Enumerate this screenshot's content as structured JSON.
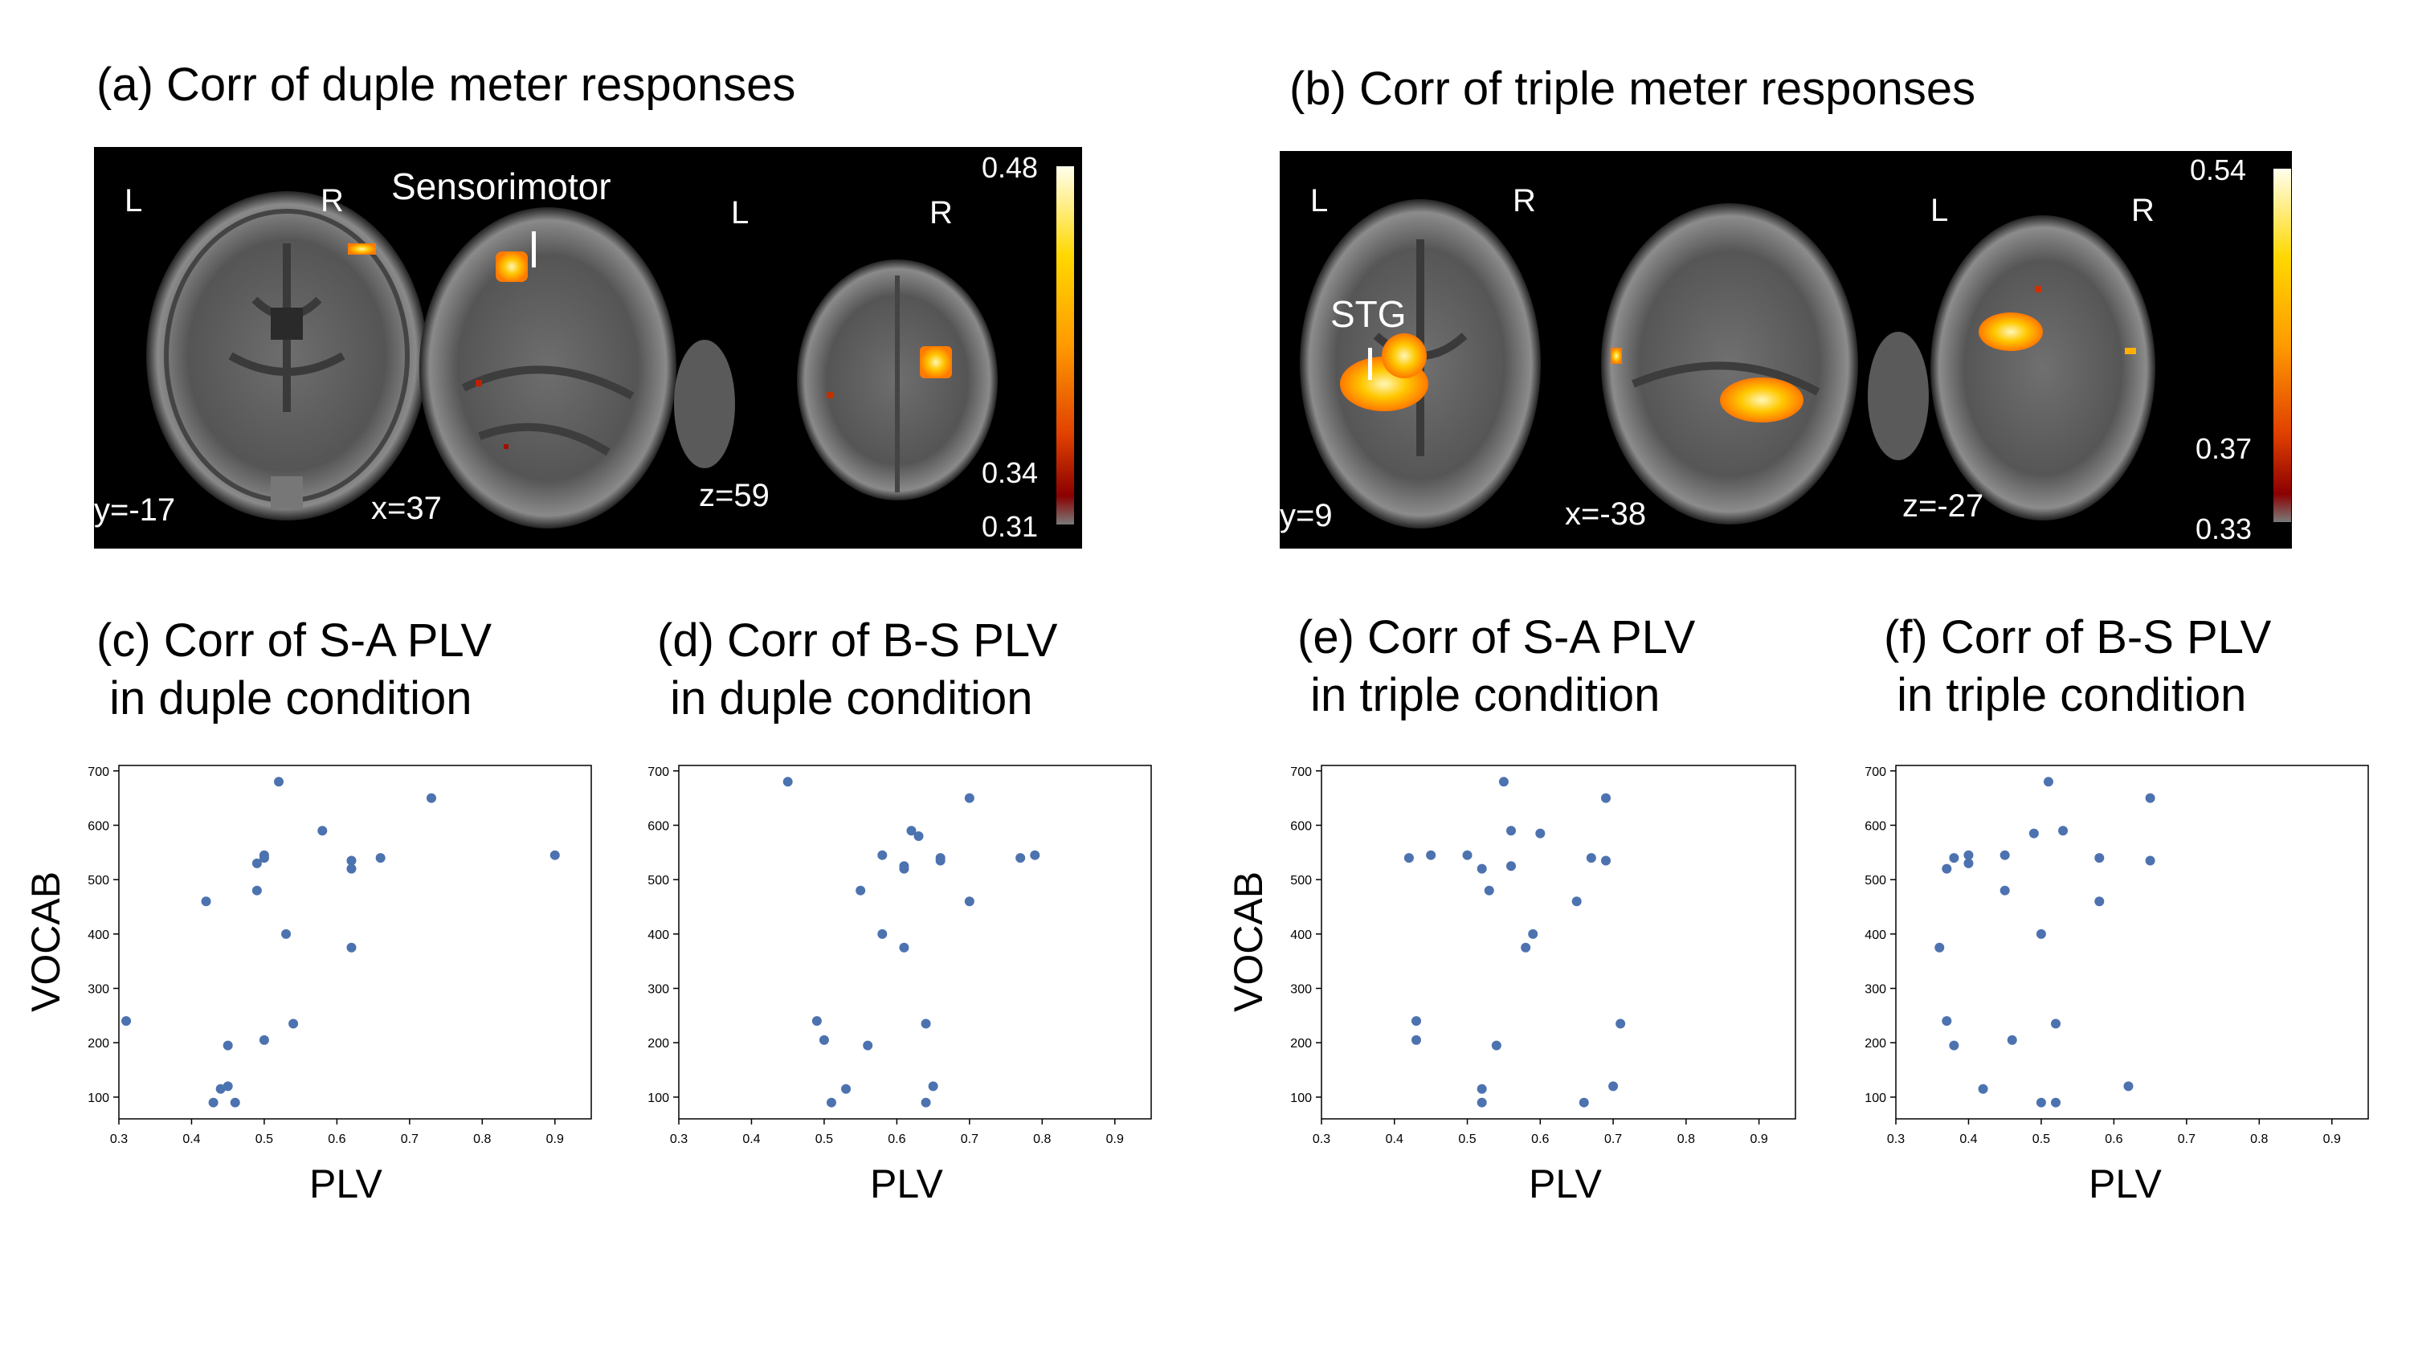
{
  "panels": {
    "a": {
      "title": "(a) Corr of duple meter responses",
      "label_L1": "L",
      "label_R1": "R",
      "label_L3": "L",
      "label_R3": "R",
      "annotation": "Sensorimotor",
      "slice1": "y=-17",
      "slice2": "x=37",
      "slice3": "z=59",
      "cbar_max": "0.48",
      "cbar_mid": "0.34",
      "cbar_min": "0.31"
    },
    "b": {
      "title": "(b) Corr of triple meter responses",
      "label_L1": "L",
      "label_R1": "R",
      "label_L3": "L",
      "label_R3": "R",
      "annotation": "STG",
      "slice1": "y=9",
      "slice2": "x=-38",
      "slice3": "z=-27",
      "cbar_max": "0.54",
      "cbar_mid": "0.37",
      "cbar_min": "0.33"
    }
  },
  "colors": {
    "point": "#4c72b0",
    "hot_low": "#8b1a00",
    "hot_mid": "#ff6a00",
    "hot_high": "#ffffe0"
  },
  "chart_data": [
    {
      "type": "scatter",
      "title": "(c) Corr of S-A PLV\n in duple condition",
      "xlabel": "PLV",
      "ylabel": "VOCAB",
      "xlim": [
        0.3,
        0.95
      ],
      "ylim": [
        60,
        710
      ],
      "xticks": [
        "0.3",
        "0.4",
        "0.5",
        "0.6",
        "0.7",
        "0.8",
        "0.9"
      ],
      "yticks": [
        "100",
        "200",
        "300",
        "400",
        "500",
        "600",
        "700"
      ],
      "x": [
        0.31,
        0.42,
        0.43,
        0.44,
        0.45,
        0.45,
        0.46,
        0.49,
        0.49,
        0.5,
        0.5,
        0.5,
        0.52,
        0.53,
        0.54,
        0.58,
        0.62,
        0.62,
        0.62,
        0.66,
        0.73,
        0.9
      ],
      "y": [
        240,
        460,
        90,
        115,
        120,
        195,
        90,
        480,
        530,
        540,
        545,
        205,
        680,
        400,
        235,
        590,
        375,
        520,
        535,
        540,
        650,
        545
      ]
    },
    {
      "type": "scatter",
      "title": "(d) Corr of B-S PLV\n in duple condition",
      "xlabel": "PLV",
      "ylabel": "",
      "xlim": [
        0.3,
        0.95
      ],
      "ylim": [
        60,
        710
      ],
      "xticks": [
        "0.3",
        "0.4",
        "0.5",
        "0.6",
        "0.7",
        "0.8",
        "0.9"
      ],
      "yticks": [
        "100",
        "200",
        "300",
        "400",
        "500",
        "600",
        "700"
      ],
      "x": [
        0.45,
        0.49,
        0.5,
        0.51,
        0.53,
        0.55,
        0.56,
        0.58,
        0.58,
        0.61,
        0.61,
        0.61,
        0.62,
        0.63,
        0.64,
        0.64,
        0.65,
        0.66,
        0.66,
        0.7,
        0.7,
        0.77,
        0.79
      ],
      "y": [
        680,
        240,
        205,
        90,
        115,
        480,
        195,
        400,
        545,
        525,
        520,
        375,
        590,
        580,
        90,
        235,
        120,
        535,
        540,
        650,
        460,
        540,
        545
      ]
    },
    {
      "type": "scatter",
      "title": "(e) Corr of S-A PLV\n in triple condition",
      "xlabel": "PLV",
      "ylabel": "VOCAB",
      "xlim": [
        0.3,
        0.95
      ],
      "ylim": [
        60,
        710
      ],
      "xticks": [
        "0.3",
        "0.4",
        "0.5",
        "0.6",
        "0.7",
        "0.8",
        "0.9"
      ],
      "yticks": [
        "100",
        "200",
        "300",
        "400",
        "500",
        "600",
        "700"
      ],
      "x": [
        0.42,
        0.43,
        0.43,
        0.45,
        0.5,
        0.52,
        0.52,
        0.52,
        0.53,
        0.54,
        0.55,
        0.56,
        0.56,
        0.58,
        0.59,
        0.6,
        0.65,
        0.66,
        0.67,
        0.69,
        0.69,
        0.7,
        0.71
      ],
      "y": [
        540,
        240,
        205,
        545,
        545,
        520,
        115,
        90,
        480,
        195,
        680,
        525,
        590,
        375,
        400,
        585,
        460,
        90,
        540,
        650,
        535,
        120,
        235
      ]
    },
    {
      "type": "scatter",
      "title": "(f) Corr of B-S PLV\n in triple condition",
      "xlabel": "PLV",
      "ylabel": "",
      "xlim": [
        0.3,
        0.95
      ],
      "ylim": [
        60,
        710
      ],
      "xticks": [
        "0.3",
        "0.4",
        "0.5",
        "0.6",
        "0.7",
        "0.8",
        "0.9"
      ],
      "yticks": [
        "100",
        "200",
        "300",
        "400",
        "500",
        "600",
        "700"
      ],
      "x": [
        0.36,
        0.37,
        0.37,
        0.38,
        0.38,
        0.4,
        0.4,
        0.42,
        0.45,
        0.45,
        0.46,
        0.49,
        0.5,
        0.5,
        0.51,
        0.52,
        0.52,
        0.53,
        0.58,
        0.58,
        0.62,
        0.65,
        0.65
      ],
      "y": [
        375,
        520,
        240,
        540,
        195,
        530,
        545,
        115,
        545,
        480,
        205,
        585,
        400,
        90,
        680,
        235,
        90,
        590,
        540,
        460,
        120,
        650,
        535
      ]
    }
  ]
}
